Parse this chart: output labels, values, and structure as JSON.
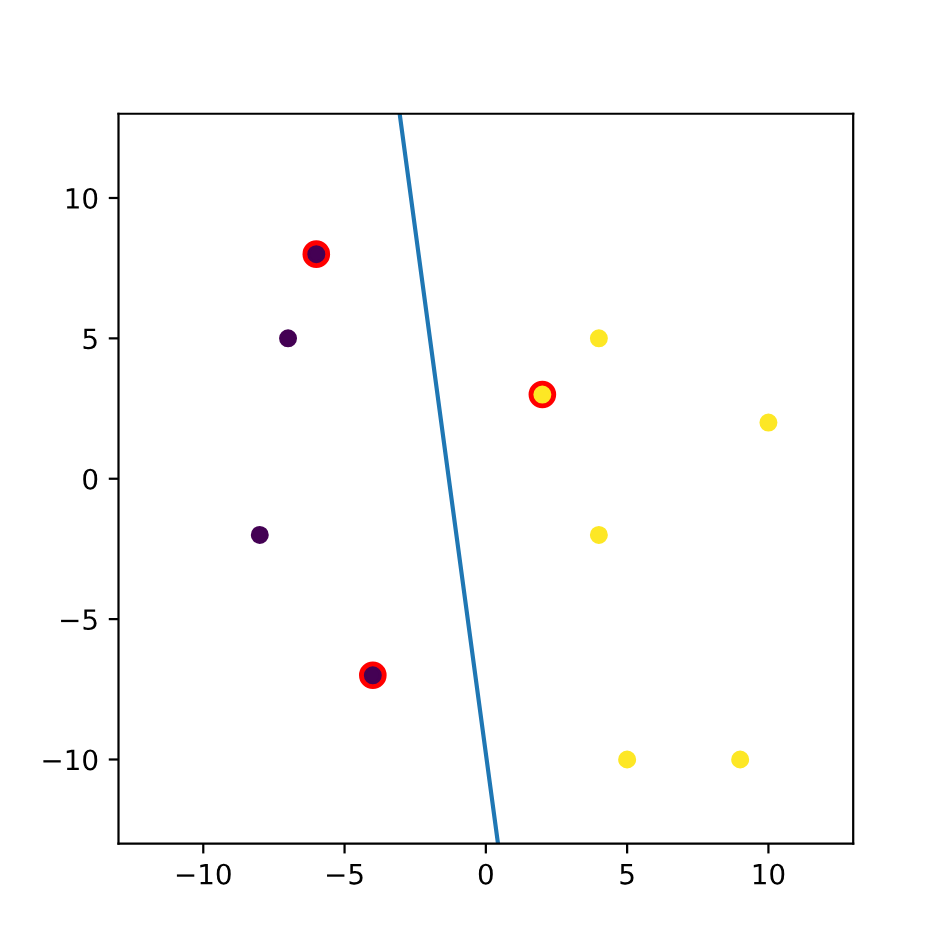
{
  "chart_data": {
    "type": "scatter",
    "xlim": [
      -13,
      13
    ],
    "ylim": [
      -13,
      13
    ],
    "xticks": [
      {
        "value": -10,
        "label": "−10"
      },
      {
        "value": -5,
        "label": "−5"
      },
      0,
      5,
      10
    ],
    "yticks": [
      {
        "value": -10,
        "label": "−10"
      },
      {
        "value": -5,
        "label": "−5"
      },
      0,
      5,
      10
    ],
    "grid": false,
    "legend": false,
    "series": [
      {
        "type": "bubble",
        "sizes": [
          1,
          1,
          1
        ],
        "color": "#ff0000",
        "x": [
          -6,
          -4,
          2
        ],
        "values": [
          8,
          -7,
          3
        ]
      },
      {
        "color": "#440154",
        "x": [
          -6,
          -7,
          -8,
          -4
        ],
        "values": [
          8,
          5,
          -2,
          -7
        ]
      },
      {
        "color": "#fde725",
        "x": [
          2,
          4,
          10,
          4,
          5,
          9
        ],
        "values": [
          3,
          5,
          2,
          -2,
          -10,
          -10
        ]
      },
      {
        "type": "line",
        "color": "#1f77b4",
        "x": [
          -3.05,
          0.43
        ],
        "values": [
          13,
          -13
        ]
      }
    ]
  }
}
